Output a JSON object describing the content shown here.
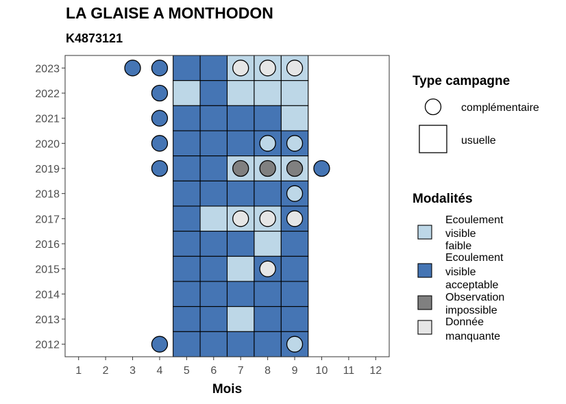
{
  "title": "LA GLAISE A MONTHODON",
  "subtitle": "K4873121",
  "chart_data": {
    "type": "heatmap",
    "xlabel": "Mois",
    "ylabel": "",
    "x_ticks": [
      1,
      2,
      3,
      4,
      5,
      6,
      7,
      8,
      9,
      10,
      11,
      12
    ],
    "y_ticks": [
      2012,
      2013,
      2014,
      2015,
      2016,
      2017,
      2018,
      2019,
      2020,
      2021,
      2022,
      2023
    ],
    "xlim": [
      0.5,
      12.5
    ],
    "ylim": [
      2011.5,
      2023.5
    ],
    "grid": false,
    "colors": {
      "ecoulement_visible_faible": "#bdd7e7",
      "ecoulement_visible_acceptable": "#4575b4",
      "observation_impossible": "#808080",
      "donnee_manquante": "#e6e6e6"
    },
    "legend_type_campagne": {
      "title": "Type campagne",
      "items": [
        {
          "label": "complémentaire",
          "shape": "circle"
        },
        {
          "label": "usuelle",
          "shape": "square"
        }
      ]
    },
    "legend_modalites": {
      "title": "Modalités",
      "items": [
        {
          "key": "ecoulement_visible_faible",
          "lines": [
            "Ecoulement",
            "visible",
            "faible"
          ]
        },
        {
          "key": "ecoulement_visible_acceptable",
          "lines": [
            "Ecoulement",
            "visible",
            "acceptable"
          ]
        },
        {
          "key": "observation_impossible",
          "lines": [
            "Observation",
            "impossible"
          ]
        },
        {
          "key": "donnee_manquante",
          "lines": [
            "Donnée",
            "manquante"
          ]
        }
      ]
    },
    "usuelle": [
      {
        "year": 2023,
        "month": 5,
        "modalite": "ecoulement_visible_acceptable"
      },
      {
        "year": 2023,
        "month": 6,
        "modalite": "ecoulement_visible_acceptable"
      },
      {
        "year": 2023,
        "month": 7,
        "modalite": "ecoulement_visible_faible"
      },
      {
        "year": 2023,
        "month": 8,
        "modalite": "ecoulement_visible_faible"
      },
      {
        "year": 2023,
        "month": 9,
        "modalite": "ecoulement_visible_faible"
      },
      {
        "year": 2022,
        "month": 5,
        "modalite": "ecoulement_visible_faible"
      },
      {
        "year": 2022,
        "month": 6,
        "modalite": "ecoulement_visible_acceptable"
      },
      {
        "year": 2022,
        "month": 7,
        "modalite": "ecoulement_visible_faible"
      },
      {
        "year": 2022,
        "month": 8,
        "modalite": "ecoulement_visible_faible"
      },
      {
        "year": 2022,
        "month": 9,
        "modalite": "ecoulement_visible_faible"
      },
      {
        "year": 2021,
        "month": 5,
        "modalite": "ecoulement_visible_acceptable"
      },
      {
        "year": 2021,
        "month": 6,
        "modalite": "ecoulement_visible_acceptable"
      },
      {
        "year": 2021,
        "month": 7,
        "modalite": "ecoulement_visible_acceptable"
      },
      {
        "year": 2021,
        "month": 8,
        "modalite": "ecoulement_visible_acceptable"
      },
      {
        "year": 2021,
        "month": 9,
        "modalite": "ecoulement_visible_faible"
      },
      {
        "year": 2020,
        "month": 5,
        "modalite": "ecoulement_visible_acceptable"
      },
      {
        "year": 2020,
        "month": 6,
        "modalite": "ecoulement_visible_acceptable"
      },
      {
        "year": 2020,
        "month": 7,
        "modalite": "ecoulement_visible_acceptable"
      },
      {
        "year": 2020,
        "month": 8,
        "modalite": "ecoulement_visible_acceptable"
      },
      {
        "year": 2020,
        "month": 9,
        "modalite": "ecoulement_visible_acceptable"
      },
      {
        "year": 2019,
        "month": 5,
        "modalite": "ecoulement_visible_acceptable"
      },
      {
        "year": 2019,
        "month": 6,
        "modalite": "ecoulement_visible_acceptable"
      },
      {
        "year": 2019,
        "month": 7,
        "modalite": "ecoulement_visible_faible"
      },
      {
        "year": 2019,
        "month": 8,
        "modalite": "ecoulement_visible_faible"
      },
      {
        "year": 2019,
        "month": 9,
        "modalite": "ecoulement_visible_faible"
      },
      {
        "year": 2018,
        "month": 5,
        "modalite": "ecoulement_visible_acceptable"
      },
      {
        "year": 2018,
        "month": 6,
        "modalite": "ecoulement_visible_acceptable"
      },
      {
        "year": 2018,
        "month": 7,
        "modalite": "ecoulement_visible_acceptable"
      },
      {
        "year": 2018,
        "month": 8,
        "modalite": "ecoulement_visible_acceptable"
      },
      {
        "year": 2018,
        "month": 9,
        "modalite": "ecoulement_visible_acceptable"
      },
      {
        "year": 2017,
        "month": 5,
        "modalite": "ecoulement_visible_acceptable"
      },
      {
        "year": 2017,
        "month": 6,
        "modalite": "ecoulement_visible_faible"
      },
      {
        "year": 2017,
        "month": 7,
        "modalite": "ecoulement_visible_faible"
      },
      {
        "year": 2017,
        "month": 8,
        "modalite": "ecoulement_visible_faible"
      },
      {
        "year": 2017,
        "month": 9,
        "modalite": "ecoulement_visible_acceptable"
      },
      {
        "year": 2016,
        "month": 5,
        "modalite": "ecoulement_visible_acceptable"
      },
      {
        "year": 2016,
        "month": 6,
        "modalite": "ecoulement_visible_acceptable"
      },
      {
        "year": 2016,
        "month": 7,
        "modalite": "ecoulement_visible_acceptable"
      },
      {
        "year": 2016,
        "month": 8,
        "modalite": "ecoulement_visible_faible"
      },
      {
        "year": 2016,
        "month": 9,
        "modalite": "ecoulement_visible_acceptable"
      },
      {
        "year": 2015,
        "month": 5,
        "modalite": "ecoulement_visible_acceptable"
      },
      {
        "year": 2015,
        "month": 6,
        "modalite": "ecoulement_visible_acceptable"
      },
      {
        "year": 2015,
        "month": 7,
        "modalite": "ecoulement_visible_faible"
      },
      {
        "year": 2015,
        "month": 8,
        "modalite": "ecoulement_visible_acceptable"
      },
      {
        "year": 2015,
        "month": 9,
        "modalite": "ecoulement_visible_acceptable"
      },
      {
        "year": 2014,
        "month": 5,
        "modalite": "ecoulement_visible_acceptable"
      },
      {
        "year": 2014,
        "month": 6,
        "modalite": "ecoulement_visible_acceptable"
      },
      {
        "year": 2014,
        "month": 7,
        "modalite": "ecoulement_visible_acceptable"
      },
      {
        "year": 2014,
        "month": 8,
        "modalite": "ecoulement_visible_acceptable"
      },
      {
        "year": 2014,
        "month": 9,
        "modalite": "ecoulement_visible_acceptable"
      },
      {
        "year": 2013,
        "month": 5,
        "modalite": "ecoulement_visible_acceptable"
      },
      {
        "year": 2013,
        "month": 6,
        "modalite": "ecoulement_visible_acceptable"
      },
      {
        "year": 2013,
        "month": 7,
        "modalite": "ecoulement_visible_faible"
      },
      {
        "year": 2013,
        "month": 8,
        "modalite": "ecoulement_visible_acceptable"
      },
      {
        "year": 2013,
        "month": 9,
        "modalite": "ecoulement_visible_acceptable"
      },
      {
        "year": 2012,
        "month": 5,
        "modalite": "ecoulement_visible_acceptable"
      },
      {
        "year": 2012,
        "month": 6,
        "modalite": "ecoulement_visible_acceptable"
      },
      {
        "year": 2012,
        "month": 7,
        "modalite": "ecoulement_visible_acceptable"
      },
      {
        "year": 2012,
        "month": 8,
        "modalite": "ecoulement_visible_acceptable"
      },
      {
        "year": 2012,
        "month": 9,
        "modalite": "ecoulement_visible_acceptable"
      }
    ],
    "complementaire": [
      {
        "year": 2023,
        "month": 3,
        "modalite": "ecoulement_visible_acceptable"
      },
      {
        "year": 2023,
        "month": 4,
        "modalite": "ecoulement_visible_acceptable"
      },
      {
        "year": 2023,
        "month": 7,
        "modalite": "donnee_manquante"
      },
      {
        "year": 2023,
        "month": 8,
        "modalite": "donnee_manquante"
      },
      {
        "year": 2023,
        "month": 9,
        "modalite": "donnee_manquante"
      },
      {
        "year": 2022,
        "month": 4,
        "modalite": "ecoulement_visible_acceptable"
      },
      {
        "year": 2021,
        "month": 4,
        "modalite": "ecoulement_visible_acceptable"
      },
      {
        "year": 2020,
        "month": 4,
        "modalite": "ecoulement_visible_acceptable"
      },
      {
        "year": 2020,
        "month": 8,
        "modalite": "ecoulement_visible_faible"
      },
      {
        "year": 2020,
        "month": 9,
        "modalite": "ecoulement_visible_faible"
      },
      {
        "year": 2019,
        "month": 4,
        "modalite": "ecoulement_visible_acceptable"
      },
      {
        "year": 2019,
        "month": 7,
        "modalite": "observation_impossible"
      },
      {
        "year": 2019,
        "month": 8,
        "modalite": "observation_impossible"
      },
      {
        "year": 2019,
        "month": 9,
        "modalite": "observation_impossible"
      },
      {
        "year": 2019,
        "month": 10,
        "modalite": "ecoulement_visible_acceptable"
      },
      {
        "year": 2018,
        "month": 9,
        "modalite": "ecoulement_visible_faible"
      },
      {
        "year": 2017,
        "month": 7,
        "modalite": "donnee_manquante"
      },
      {
        "year": 2017,
        "month": 8,
        "modalite": "donnee_manquante"
      },
      {
        "year": 2017,
        "month": 9,
        "modalite": "donnee_manquante"
      },
      {
        "year": 2015,
        "month": 8,
        "modalite": "donnee_manquante"
      },
      {
        "year": 2012,
        "month": 4,
        "modalite": "ecoulement_visible_acceptable"
      },
      {
        "year": 2012,
        "month": 9,
        "modalite": "ecoulement_visible_faible"
      }
    ]
  }
}
